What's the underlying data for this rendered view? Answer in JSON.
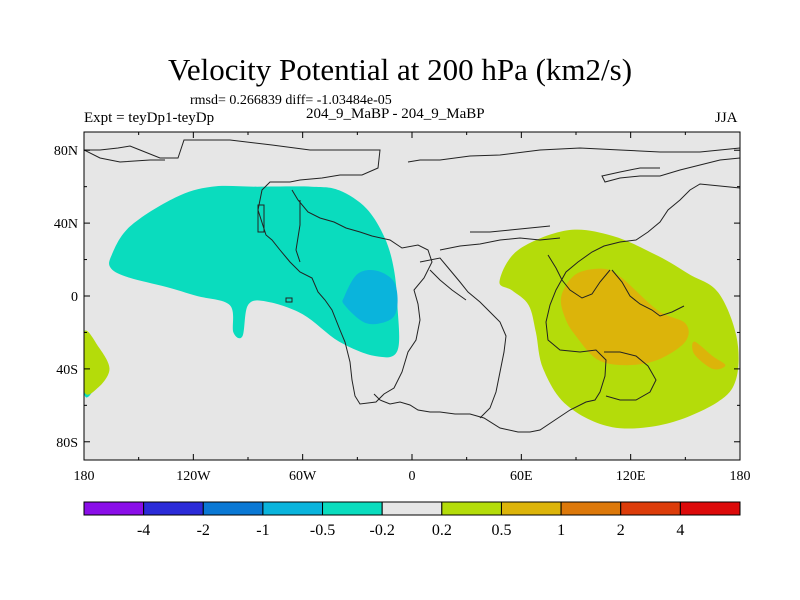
{
  "chart_data": {
    "type": "contour-map",
    "title": "Velocity Potential at 200 hPa (km2/s)",
    "stats": "rmsd= 0.266839 diff= -1.03484e-05",
    "left_label": "Expt = teyDp1-teyDp",
    "center_label": "204_9_MaBP - 204_9_MaBP",
    "right_label": "JJA",
    "x_range": [
      -180,
      180
    ],
    "y_range": [
      -90,
      90
    ],
    "x_ticks": [
      {
        "value": -180,
        "label": "180"
      },
      {
        "value": -120,
        "label": "120W"
      },
      {
        "value": -60,
        "label": "60W"
      },
      {
        "value": 0,
        "label": "0"
      },
      {
        "value": 60,
        "label": "60E"
      },
      {
        "value": 120,
        "label": "120E"
      },
      {
        "value": 180,
        "label": "180"
      }
    ],
    "y_ticks": [
      {
        "value": 80,
        "label": "80N"
      },
      {
        "value": 40,
        "label": "40N"
      },
      {
        "value": 0,
        "label": "0"
      },
      {
        "value": -40,
        "label": "40S"
      },
      {
        "value": -80,
        "label": "80S"
      }
    ],
    "colorbar": {
      "colors": [
        "#8a0ee8",
        "#2b2bd8",
        "#0a78d4",
        "#0ab4dc",
        "#0adcbe",
        "#e6e6e6",
        "#b4dc0a",
        "#dcb40a",
        "#dc780a",
        "#dc3c0a",
        "#dc0a0a"
      ],
      "labels": [
        "-4",
        "-2",
        "-1",
        "-0.5",
        "-0.2",
        "0.2",
        "0.5",
        "1",
        "2",
        "4"
      ]
    },
    "regions": [
      {
        "level": "-0.2 to -0.5",
        "color": "#0adcbe",
        "desc": "Americas / Atlantic negative center",
        "points": [
          [
            -165,
            22
          ],
          [
            -155,
            38
          ],
          [
            -130,
            54
          ],
          [
            -110,
            60
          ],
          [
            -85,
            60
          ],
          [
            -55,
            60
          ],
          [
            -40,
            58
          ],
          [
            -25,
            48
          ],
          [
            -15,
            32
          ],
          [
            -10,
            15
          ],
          [
            -8,
            -5
          ],
          [
            -8,
            -30
          ],
          [
            -20,
            -33
          ],
          [
            -40,
            -25
          ],
          [
            -60,
            -10
          ],
          [
            -80,
            -3
          ],
          [
            -90,
            -5
          ],
          [
            -93,
            -22
          ],
          [
            -98,
            -20
          ],
          [
            -100,
            -5
          ],
          [
            -118,
            0
          ],
          [
            -135,
            5
          ],
          [
            -155,
            10
          ],
          [
            -165,
            15
          ]
        ]
      },
      {
        "level": "-0.5 to -1",
        "color": "#0ab4dc",
        "desc": "inner negative center",
        "points": [
          [
            -37,
            0
          ],
          [
            -30,
            12
          ],
          [
            -20,
            14
          ],
          [
            -10,
            8
          ],
          [
            -8,
            -5
          ],
          [
            -12,
            -13
          ],
          [
            -25,
            -15
          ],
          [
            -37,
            -5
          ]
        ]
      },
      {
        "level": "-0.2 to -0.5",
        "color": "#0adcbe",
        "desc": "west edge",
        "points": [
          [
            -180,
            -20
          ],
          [
            -175,
            -28
          ],
          [
            -170,
            -38
          ],
          [
            -175,
            -52
          ],
          [
            -180,
            -53
          ]
        ]
      },
      {
        "level": "0.2 to 0.5",
        "color": "#b4dc0a",
        "desc": "west edge",
        "points": [
          [
            -180,
            -20
          ],
          [
            -172,
            -28
          ],
          [
            -166,
            -40
          ],
          [
            -172,
            -50
          ],
          [
            -180,
            -52
          ]
        ]
      },
      {
        "level": "0.2 to 0.5",
        "color": "#b4dc0a",
        "desc": "Indian Ocean / West Pacific positive center",
        "points": [
          [
            48,
            8
          ],
          [
            58,
            25
          ],
          [
            85,
            36
          ],
          [
            110,
            33
          ],
          [
            135,
            22
          ],
          [
            152,
            12
          ],
          [
            168,
            2
          ],
          [
            178,
            -22
          ],
          [
            178,
            -45
          ],
          [
            168,
            -58
          ],
          [
            140,
            -70
          ],
          [
            110,
            -72
          ],
          [
            85,
            -60
          ],
          [
            72,
            -40
          ],
          [
            68,
            -20
          ],
          [
            64,
            -5
          ],
          [
            55,
            3
          ]
        ]
      },
      {
        "level": "0.5 to 1",
        "color": "#dcb40a",
        "desc": "inner positive center",
        "points": [
          [
            82,
            0
          ],
          [
            90,
            12
          ],
          [
            105,
            15
          ],
          [
            115,
            10
          ],
          [
            135,
            -8
          ],
          [
            150,
            -15
          ],
          [
            150,
            -25
          ],
          [
            135,
            -35
          ],
          [
            118,
            -38
          ],
          [
            102,
            -35
          ],
          [
            90,
            -22
          ],
          [
            84,
            -12
          ]
        ]
      },
      {
        "level": "0.5 to 1",
        "color": "#dcb40a",
        "desc": "small patch",
        "points": [
          [
            155,
            -25
          ],
          [
            165,
            -33
          ],
          [
            172,
            -38
          ],
          [
            165,
            -40
          ],
          [
            155,
            -32
          ]
        ]
      }
    ]
  }
}
